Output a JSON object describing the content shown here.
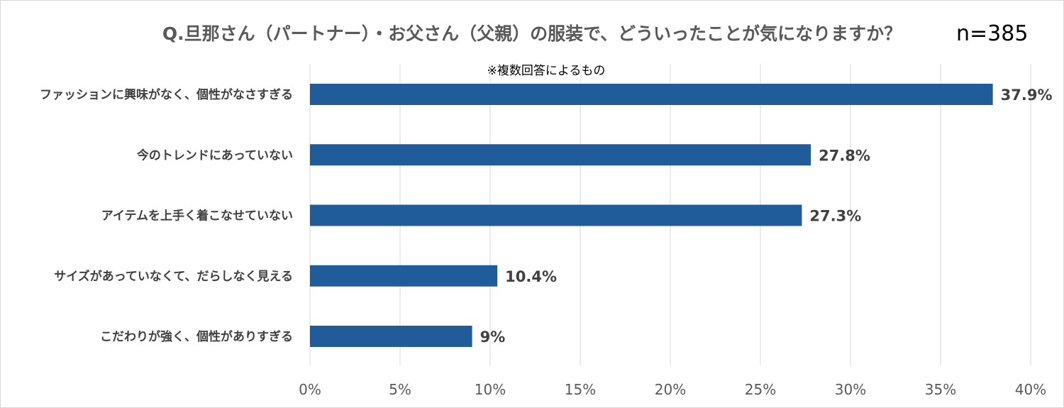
{
  "header": {
    "title": "Q.旦那さん（パートナー）・お父さん（父親）の服装で、どういったことが気になりますか？",
    "sample_size": "n=385",
    "note": "※複数回答によるもの"
  },
  "chart_data": {
    "type": "bar",
    "orientation": "horizontal",
    "title": "Q.旦那さん（パートナー）・お父さん（父親）の服装で、どういったことが気になりますか？",
    "categories": [
      "ファッションに興味がなく、個性がなさすぎる",
      "今のトレンドにあっていない",
      "アイテムを上手く着こなせていない",
      "サイズがあっていなくて、だらしなく見える",
      "こだわりが強く、個性がありすぎる"
    ],
    "values": [
      37.9,
      27.8,
      27.3,
      10.4,
      9
    ],
    "value_labels": [
      "37.9%",
      "27.8%",
      "27.3%",
      "10.4%",
      "9%"
    ],
    "xlim": [
      0,
      40
    ],
    "xticks": [
      0,
      5,
      10,
      15,
      20,
      25,
      30,
      35,
      40
    ],
    "xtick_labels": [
      "0%",
      "5%",
      "10%",
      "15%",
      "20%",
      "25%",
      "30%",
      "35%",
      "40%"
    ],
    "xlabel": "",
    "ylabel": "",
    "grid": "vertical",
    "legend": "none",
    "bar_color": "#1f5c99",
    "grid_color": "#d9d9d9"
  }
}
